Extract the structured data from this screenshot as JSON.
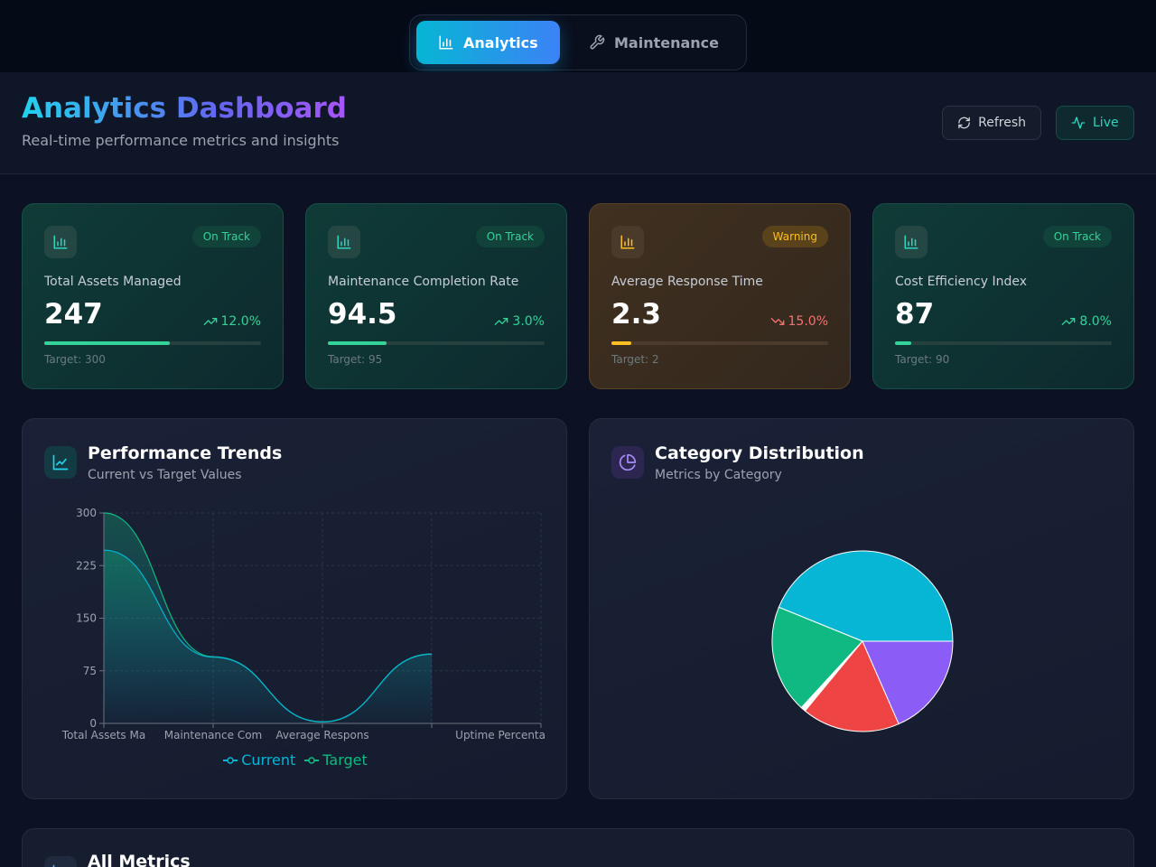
{
  "nav": {
    "analytics_label": "Analytics",
    "maintenance_label": "Maintenance"
  },
  "header": {
    "title": "Analytics Dashboard",
    "subtitle": "Real-time performance metrics and insights",
    "refresh_label": "Refresh",
    "live_label": "Live"
  },
  "kpis": [
    {
      "label": "Total Assets Managed",
      "value": "247",
      "badge": "On Track",
      "change": "12.0%",
      "trend": "up",
      "target": "Target: 300",
      "progress": 0.58,
      "status": "good"
    },
    {
      "label": "Maintenance Completion Rate",
      "value": "94.5",
      "badge": "On Track",
      "change": "3.0%",
      "trend": "up",
      "target": "Target: 95",
      "progress": 0.27,
      "status": "good"
    },
    {
      "label": "Average Response Time",
      "value": "2.3",
      "badge": "Warning",
      "change": "15.0%",
      "trend": "down",
      "target": "Target: 2",
      "progress": 0.09,
      "status": "warning"
    },
    {
      "label": "Cost Efficiency Index",
      "value": "87",
      "badge": "On Track",
      "change": "8.0%",
      "trend": "up",
      "target": "Target: 90",
      "progress": 0.075,
      "status": "good"
    }
  ],
  "trends": {
    "title": "Performance Trends",
    "subtitle": "Current vs Target Values"
  },
  "distribution": {
    "title": "Category Distribution",
    "subtitle": "Metrics by Category"
  },
  "all_metrics": {
    "title": "All Metrics"
  },
  "colors": {
    "current": "#06b6d4",
    "target": "#10b981",
    "pie": [
      "#06b6d4",
      "#10b981",
      "#ffffff",
      "#ef4444",
      "#8b5cf6"
    ]
  },
  "chart_data": [
    {
      "type": "area",
      "categories": [
        "Total Assets Ma",
        "Maintenance Com",
        "Average Respons",
        "Uptime Percenta"
      ],
      "ylim": [
        0,
        300
      ],
      "yticks": [
        0,
        75,
        150,
        225,
        300
      ],
      "grid": true,
      "legend": "bottom",
      "series": [
        {
          "name": "Current",
          "values": [
            247,
            94.5,
            2.3,
            98.7
          ]
        },
        {
          "name": "Target",
          "values": [
            300,
            95,
            2,
            99
          ]
        }
      ]
    },
    {
      "type": "pie",
      "values": [
        50,
        22,
        1,
        20,
        21
      ],
      "legend": "none"
    }
  ]
}
